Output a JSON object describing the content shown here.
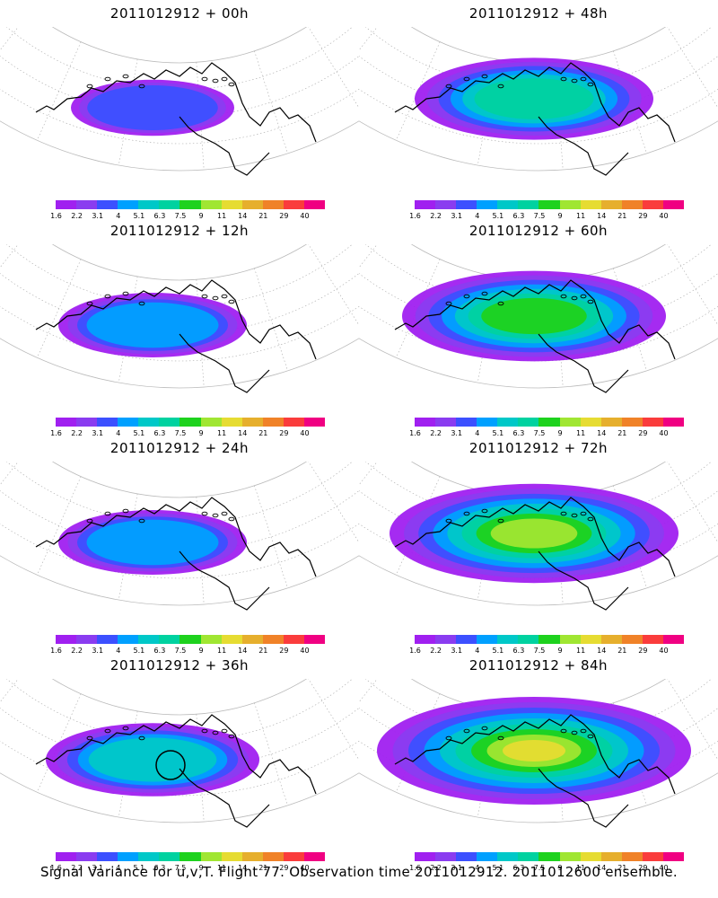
{
  "footer": "Signal Variance for u,v,T. Flight 77. Observation time 2011012912. 2011012600 ensemble.",
  "colorbar": {
    "labels": [
      "1.6",
      "2.2",
      "3.1",
      "4",
      "5.1",
      "6.3",
      "7.5",
      "9",
      "11",
      "14",
      "21",
      "29",
      "40"
    ],
    "colors": [
      "#a020f0",
      "#8a3cf0",
      "#3c50ff",
      "#00a0ff",
      "#00c8c8",
      "#00d2a0",
      "#1ed21e",
      "#a0e632",
      "#e6dc32",
      "#e6af2d",
      "#f08228",
      "#fa3c3c",
      "#f00082"
    ]
  },
  "panels": [
    {
      "title": "2011012912 + 00h",
      "level": 1
    },
    {
      "title": "2011012912 + 48h",
      "level": 4
    },
    {
      "title": "2011012912 + 12h",
      "level": 2
    },
    {
      "title": "2011012912 + 60h",
      "level": 5
    },
    {
      "title": "2011012912 + 24h",
      "level": 2
    },
    {
      "title": "2011012912 + 72h",
      "level": 6
    },
    {
      "title": "2011012912 + 36h",
      "level": 3
    },
    {
      "title": "2011012912 + 84h",
      "level": 7
    }
  ]
}
